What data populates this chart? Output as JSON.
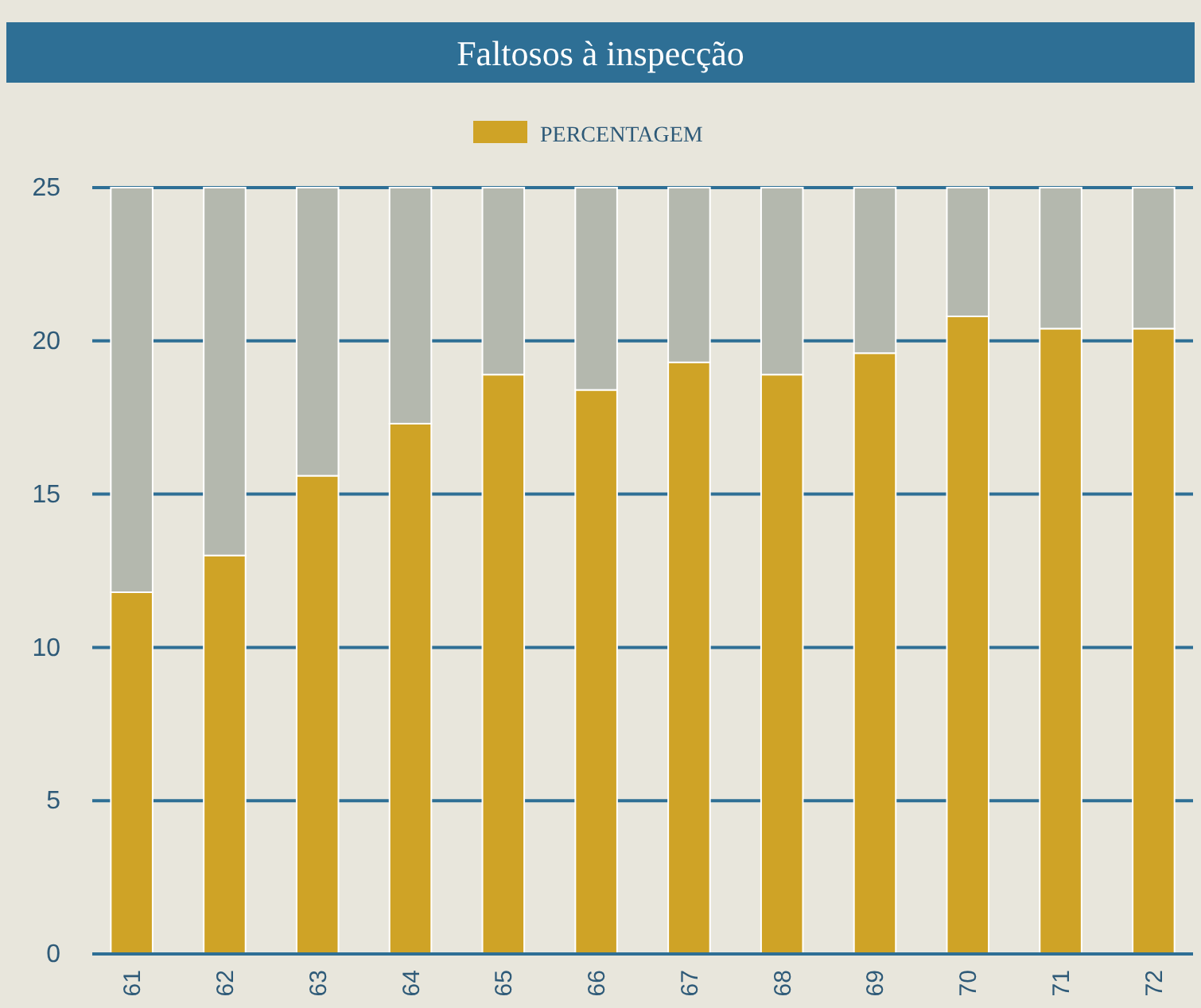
{
  "chart_data": {
    "type": "bar",
    "title": "Faltosos à inspecção",
    "stacked": true,
    "categories": [
      "61",
      "62",
      "63",
      "64",
      "65",
      "66",
      "67",
      "68",
      "69",
      "70",
      "71",
      "72"
    ],
    "series": [
      {
        "name": "PERCENTAGEM",
        "color": "#cfa326",
        "values": [
          11.8,
          13.0,
          15.6,
          17.3,
          18.9,
          18.4,
          19.3,
          18.9,
          19.6,
          20.8,
          20.4,
          20.4
        ]
      },
      {
        "color": "#b4b8ae",
        "values": [
          13.2,
          12.0,
          9.4,
          7.7,
          6.1,
          6.6,
          5.7,
          6.1,
          5.4,
          4.2,
          4.6,
          4.6
        ]
      }
    ],
    "ylim": [
      0,
      25
    ],
    "yticks": [
      0,
      5,
      10,
      15,
      20,
      25
    ],
    "grid": "y",
    "legend": "top"
  }
}
